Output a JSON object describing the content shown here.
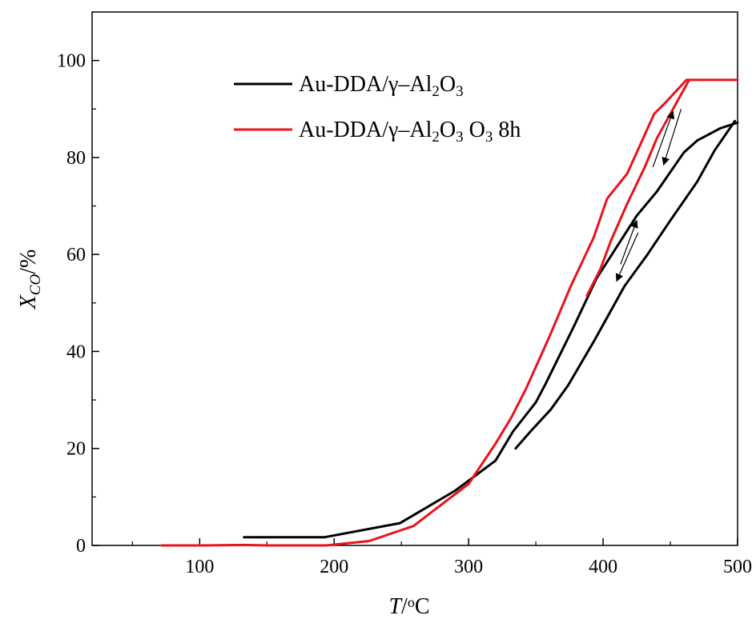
{
  "chart_data": {
    "type": "line",
    "xlabel": {
      "italic": "T",
      "rest": "/",
      "sup": "o",
      "unit": "C"
    },
    "ylabel": {
      "italic": "X",
      "sub": "CO",
      "rest": "/%"
    },
    "xlim": [
      20,
      500
    ],
    "ylim": [
      0,
      110
    ],
    "xticks": [
      100,
      200,
      300,
      400,
      500
    ],
    "yticks": [
      0,
      20,
      40,
      60,
      80,
      100
    ],
    "grid": false,
    "legend_position": "top-left",
    "series": [
      {
        "name": "Au-DDA/γ–Al2O3",
        "legend_parts": [
          {
            "t": "Au-DDA/γ–Al"
          },
          {
            "t": "2",
            "sub": true
          },
          {
            "t": "O"
          },
          {
            "t": "3",
            "sub": true
          }
        ],
        "color": "#000000",
        "segments": [
          [
            [
              133,
              1.7
            ],
            [
              193,
              1.7
            ],
            [
              249,
              4.6
            ],
            [
              290,
              11.3
            ],
            [
              320,
              17.5
            ],
            [
              333,
              23.5
            ],
            [
              350,
              29.5
            ],
            [
              357,
              33.2
            ],
            [
              378,
              45.0
            ],
            [
              395,
              55.0
            ],
            [
              410,
              61.5
            ],
            [
              425,
              68.0
            ],
            [
              440,
              73.0
            ],
            [
              460,
              81.0
            ],
            [
              470,
              83.5
            ],
            [
              487,
              86.0
            ],
            [
              500,
              87.2
            ]
          ],
          [
            [
              335,
              20.0
            ],
            [
              346,
              23.5
            ],
            [
              361,
              28.0
            ],
            [
              374,
              33.0
            ],
            [
              393,
              42.0
            ],
            [
              403,
              47.0
            ],
            [
              416,
              53.5
            ],
            [
              433,
              60.0
            ],
            [
              450,
              67.0
            ],
            [
              470,
              75.0
            ],
            [
              483,
              81.5
            ],
            [
              498,
              87.5
            ]
          ]
        ]
      },
      {
        "name": "Au-DDA/γ–Al2O3 O3 8h",
        "legend_parts": [
          {
            "t": "Au-DDA/γ–Al"
          },
          {
            "t": "2",
            "sub": true
          },
          {
            "t": "O"
          },
          {
            "t": "3",
            "sub": true
          },
          {
            "t": " O"
          },
          {
            "t": "3",
            "sub": true
          },
          {
            "t": " 8h"
          }
        ],
        "color": "#e8131b",
        "segments": [
          [
            [
              72,
              0.0
            ],
            [
              100,
              0.0
            ],
            [
              133,
              0.1
            ],
            [
              150,
              0.0
            ],
            [
              194,
              0.0
            ],
            [
              226,
              0.9
            ],
            [
              259,
              4.0
            ],
            [
              300,
              12.7
            ],
            [
              320,
              21.0
            ],
            [
              332,
              26.5
            ],
            [
              343,
              32.5
            ],
            [
              360,
              43.0
            ],
            [
              376,
              53.5
            ],
            [
              393,
              63.5
            ],
            [
              403,
              71.5
            ],
            [
              418,
              76.7
            ],
            [
              438,
              89.0
            ],
            [
              446,
              91.2
            ],
            [
              462,
              96.0
            ],
            [
              500,
              96.0
            ]
          ],
          [
            [
              388,
              51.5
            ],
            [
              398,
              57.0
            ],
            [
              406,
              63.0
            ],
            [
              418,
              70.5
            ],
            [
              431,
              78.0
            ],
            [
              440,
              84.0
            ],
            [
              452,
              90.0
            ],
            [
              464,
              96.0
            ]
          ]
        ]
      }
    ],
    "annotations": [
      {
        "type": "arrow",
        "direction": "up",
        "from": [
          437,
          78
        ],
        "to": [
          452,
          89.5
        ]
      },
      {
        "type": "arrow",
        "direction": "down",
        "from": [
          458,
          90
        ],
        "to": [
          445,
          78.5
        ]
      },
      {
        "type": "arrow",
        "direction": "up",
        "from": [
          413,
          58
        ],
        "to": [
          425,
          67
        ]
      },
      {
        "type": "arrow",
        "direction": "down",
        "from": [
          426,
          64.5
        ],
        "to": [
          410,
          54.5
        ]
      }
    ]
  }
}
